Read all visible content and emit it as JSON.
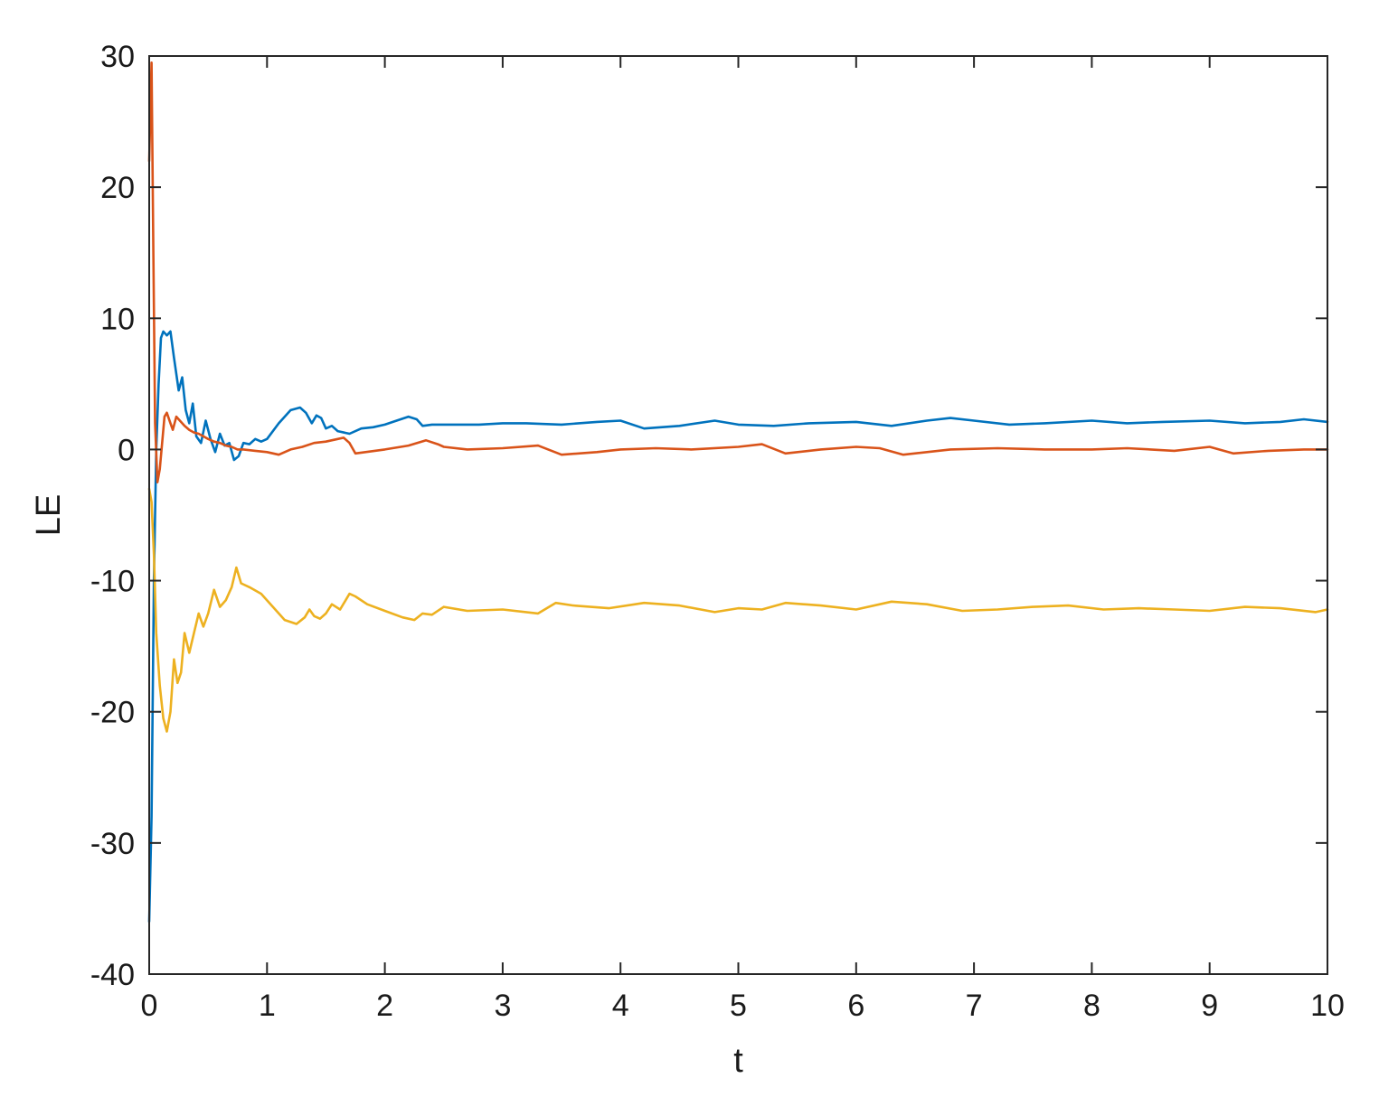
{
  "chart_data": {
    "type": "line",
    "title": "",
    "xlabel": "t",
    "ylabel": "LE",
    "xlim": [
      0,
      10
    ],
    "ylim": [
      -40,
      30
    ],
    "xticks": [
      0,
      1,
      2,
      3,
      4,
      5,
      6,
      7,
      8,
      9,
      10
    ],
    "yticks": [
      -40,
      -30,
      -20,
      -10,
      0,
      10,
      20,
      30
    ],
    "grid": false,
    "legend": "none",
    "series": [
      {
        "color": "#0072BD",
        "x": [
          0.0,
          0.02,
          0.04,
          0.06,
          0.08,
          0.1,
          0.12,
          0.15,
          0.18,
          0.21,
          0.25,
          0.28,
          0.31,
          0.34,
          0.37,
          0.4,
          0.44,
          0.48,
          0.52,
          0.56,
          0.6,
          0.64,
          0.68,
          0.72,
          0.76,
          0.8,
          0.85,
          0.9,
          0.95,
          1.0,
          1.1,
          1.2,
          1.28,
          1.33,
          1.38,
          1.42,
          1.46,
          1.5,
          1.55,
          1.6,
          1.7,
          1.8,
          1.9,
          2.0,
          2.1,
          2.2,
          2.27,
          2.32,
          2.4,
          2.6,
          2.8,
          3.0,
          3.2,
          3.5,
          3.8,
          4.0,
          4.2,
          4.5,
          4.8,
          5.0,
          5.3,
          5.6,
          6.0,
          6.3,
          6.6,
          6.8,
          7.0,
          7.3,
          7.6,
          8.0,
          8.3,
          8.6,
          9.0,
          9.3,
          9.6,
          9.8,
          10.0
        ],
        "values": [
          -36.0,
          -28.0,
          -10.0,
          0.0,
          5.0,
          8.5,
          9.0,
          8.7,
          9.0,
          7.0,
          4.5,
          5.5,
          3.0,
          2.0,
          3.5,
          1.0,
          0.5,
          2.2,
          0.8,
          -0.2,
          1.2,
          0.3,
          0.5,
          -0.8,
          -0.5,
          0.5,
          0.4,
          0.8,
          0.6,
          0.8,
          2.0,
          3.0,
          3.2,
          2.8,
          2.0,
          2.6,
          2.4,
          1.6,
          1.8,
          1.4,
          1.2,
          1.6,
          1.7,
          1.9,
          2.2,
          2.5,
          2.3,
          1.8,
          1.9,
          1.9,
          1.9,
          2.0,
          2.0,
          1.9,
          2.1,
          2.2,
          1.6,
          1.8,
          2.2,
          1.9,
          1.8,
          2.0,
          2.1,
          1.8,
          2.2,
          2.4,
          2.2,
          1.9,
          2.0,
          2.2,
          2.0,
          2.1,
          2.2,
          2.0,
          2.1,
          2.3,
          2.1
        ]
      },
      {
        "color": "#D95319",
        "x": [
          0.0,
          0.02,
          0.035,
          0.05,
          0.07,
          0.09,
          0.11,
          0.13,
          0.15,
          0.18,
          0.2,
          0.23,
          0.26,
          0.3,
          0.34,
          0.38,
          0.42,
          0.46,
          0.5,
          0.55,
          0.6,
          0.65,
          0.7,
          0.75,
          0.8,
          0.9,
          1.0,
          1.1,
          1.2,
          1.3,
          1.4,
          1.5,
          1.6,
          1.65,
          1.7,
          1.75,
          2.0,
          2.2,
          2.35,
          2.45,
          2.5,
          2.7,
          3.0,
          3.3,
          3.5,
          3.8,
          4.0,
          4.3,
          4.6,
          5.0,
          5.2,
          5.4,
          5.7,
          6.0,
          6.2,
          6.4,
          6.8,
          7.2,
          7.6,
          8.0,
          8.3,
          8.7,
          9.0,
          9.2,
          9.5,
          9.8,
          10.0
        ],
        "values": [
          22.0,
          29.5,
          15.0,
          2.0,
          -2.5,
          -1.5,
          0.5,
          2.5,
          2.8,
          2.0,
          1.5,
          2.5,
          2.2,
          1.8,
          1.5,
          1.3,
          1.2,
          1.0,
          0.8,
          0.6,
          0.5,
          0.3,
          0.2,
          0.0,
          0.0,
          -0.1,
          -0.2,
          -0.4,
          0.0,
          0.2,
          0.5,
          0.6,
          0.8,
          0.9,
          0.5,
          -0.3,
          0.0,
          0.3,
          0.7,
          0.4,
          0.2,
          0.0,
          0.1,
          0.3,
          -0.4,
          -0.2,
          0.0,
          0.1,
          0.0,
          0.2,
          0.4,
          -0.3,
          0.0,
          0.2,
          0.1,
          -0.4,
          0.0,
          0.1,
          0.0,
          0.0,
          0.1,
          -0.1,
          0.2,
          -0.3,
          -0.1,
          0.0,
          0.0
        ]
      },
      {
        "color": "#EDB120",
        "x": [
          0.0,
          0.02,
          0.04,
          0.06,
          0.09,
          0.12,
          0.15,
          0.18,
          0.21,
          0.24,
          0.27,
          0.3,
          0.34,
          0.38,
          0.42,
          0.46,
          0.5,
          0.55,
          0.6,
          0.65,
          0.7,
          0.74,
          0.78,
          0.85,
          0.95,
          1.05,
          1.15,
          1.25,
          1.32,
          1.36,
          1.4,
          1.45,
          1.5,
          1.55,
          1.62,
          1.7,
          1.75,
          1.85,
          2.0,
          2.15,
          2.25,
          2.32,
          2.4,
          2.5,
          2.7,
          3.0,
          3.3,
          3.45,
          3.6,
          3.9,
          4.2,
          4.5,
          4.8,
          5.0,
          5.2,
          5.4,
          5.7,
          6.0,
          6.3,
          6.6,
          6.9,
          7.2,
          7.5,
          7.8,
          8.1,
          8.4,
          8.7,
          9.0,
          9.3,
          9.6,
          9.9,
          10.0
        ],
        "values": [
          -3.0,
          -4.0,
          -8.0,
          -14.0,
          -18.0,
          -20.5,
          -21.5,
          -20.0,
          -16.0,
          -17.8,
          -17.0,
          -14.0,
          -15.5,
          -14.0,
          -12.5,
          -13.5,
          -12.5,
          -10.7,
          -12.0,
          -11.5,
          -10.5,
          -9.0,
          -10.2,
          -10.5,
          -11.0,
          -12.0,
          -13.0,
          -13.3,
          -12.8,
          -12.2,
          -12.7,
          -12.9,
          -12.5,
          -11.8,
          -12.2,
          -11.0,
          -11.2,
          -11.8,
          -12.3,
          -12.8,
          -13.0,
          -12.5,
          -12.6,
          -12.0,
          -12.3,
          -12.2,
          -12.5,
          -11.7,
          -11.9,
          -12.1,
          -11.7,
          -11.9,
          -12.4,
          -12.1,
          -12.2,
          -11.7,
          -11.9,
          -12.2,
          -11.6,
          -11.8,
          -12.3,
          -12.2,
          -12.0,
          -11.9,
          -12.2,
          -12.1,
          -12.2,
          -12.3,
          -12.0,
          -12.1,
          -12.4,
          -12.2
        ]
      }
    ]
  }
}
